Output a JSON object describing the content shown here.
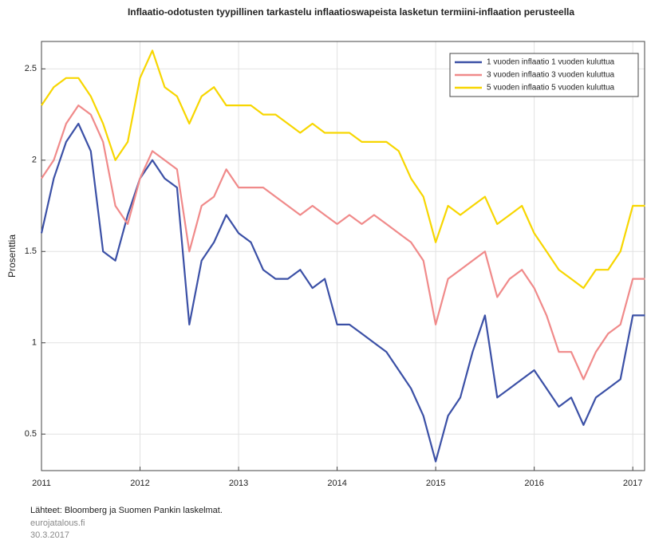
{
  "chart_data": {
    "type": "line",
    "title": "Inflaatio-odotusten tyypillinen tarkastelu inflaatioswapeista lasketun termiini-inflaation perusteella",
    "y_label": "Prosenttia",
    "x": [
      2011,
      2011.125,
      2011.25,
      2011.375,
      2011.5,
      2011.625,
      2011.75,
      2011.875,
      2012,
      2012.125,
      2012.25,
      2012.375,
      2012.5,
      2012.625,
      2012.75,
      2012.875,
      2013,
      2013.125,
      2013.25,
      2013.375,
      2013.5,
      2013.625,
      2013.75,
      2013.875,
      2014,
      2014.125,
      2014.25,
      2014.375,
      2014.5,
      2014.625,
      2014.75,
      2014.875,
      2015,
      2015.125,
      2015.25,
      2015.375,
      2015.5,
      2015.625,
      2015.75,
      2015.875,
      2016,
      2016.125,
      2016.25,
      2016.375,
      2016.5,
      2016.625,
      2016.75,
      2016.875,
      2017,
      2017.125
    ],
    "series": [
      {
        "name": "1 vuoden inflaatio 1 vuoden kuluttua",
        "color": "#3b50a6",
        "values": [
          1.6,
          1.9,
          2.1,
          2.2,
          2.05,
          1.5,
          1.45,
          1.7,
          1.9,
          2.0,
          1.9,
          1.85,
          1.1,
          1.45,
          1.55,
          1.7,
          1.6,
          1.55,
          1.4,
          1.35,
          1.35,
          1.4,
          1.3,
          1.35,
          1.1,
          1.1,
          1.05,
          1.0,
          0.95,
          0.85,
          0.75,
          0.6,
          0.35,
          0.6,
          0.7,
          0.95,
          1.15,
          0.7,
          0.75,
          0.8,
          0.85,
          0.75,
          0.65,
          0.7,
          0.55,
          0.7,
          0.75,
          0.8,
          1.15,
          1.15
        ]
      },
      {
        "name": "3 vuoden inflaatio 3 vuoden kuluttua",
        "color": "#f08a8a",
        "values": [
          1.9,
          2.0,
          2.2,
          2.3,
          2.25,
          2.1,
          1.75,
          1.65,
          1.9,
          2.05,
          2.0,
          1.95,
          1.5,
          1.75,
          1.8,
          1.95,
          1.85,
          1.85,
          1.85,
          1.8,
          1.75,
          1.7,
          1.75,
          1.7,
          1.65,
          1.7,
          1.65,
          1.7,
          1.65,
          1.6,
          1.55,
          1.45,
          1.1,
          1.35,
          1.4,
          1.45,
          1.5,
          1.25,
          1.35,
          1.4,
          1.3,
          1.15,
          0.95,
          0.95,
          0.8,
          0.95,
          1.05,
          1.1,
          1.35,
          1.35
        ]
      },
      {
        "name": "5 vuoden inflaatio 5 vuoden kuluttua",
        "color": "#f7d600",
        "values": [
          2.3,
          2.4,
          2.45,
          2.45,
          2.35,
          2.2,
          2.0,
          2.1,
          2.45,
          2.6,
          2.4,
          2.35,
          2.2,
          2.35,
          2.4,
          2.3,
          2.3,
          2.3,
          2.25,
          2.25,
          2.2,
          2.15,
          2.2,
          2.15,
          2.15,
          2.15,
          2.1,
          2.1,
          2.1,
          2.05,
          1.9,
          1.8,
          1.55,
          1.75,
          1.7,
          1.75,
          1.8,
          1.65,
          1.7,
          1.75,
          1.6,
          1.5,
          1.4,
          1.35,
          1.3,
          1.4,
          1.4,
          1.5,
          1.75,
          1.75
        ]
      }
    ],
    "xlim": [
      2011,
      2017.12
    ],
    "xticks": [
      2011,
      2012,
      2013,
      2014,
      2015,
      2016,
      2017
    ],
    "ylim": [
      0.3,
      2.65
    ],
    "yticks": [
      0.5,
      1,
      1.5,
      2,
      2.5
    ],
    "grid": true,
    "legend": "top-right"
  },
  "footer": {
    "source": "Lähteet: Bloomberg ja Suomen Pankin laskelmat.",
    "site": "eurojatalous.fi",
    "date": "30.3.2017"
  }
}
